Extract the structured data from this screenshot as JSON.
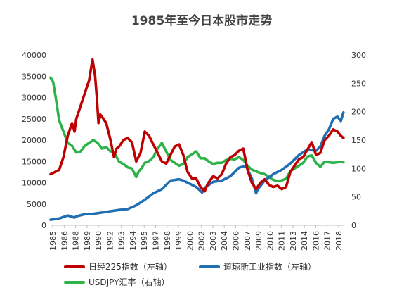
{
  "chart_data": {
    "type": "line",
    "title": "1985年至今日本股市走势",
    "xlabel": "",
    "ylabel": "",
    "x_tick_labels": [
      "1985",
      "1986",
      "1988",
      "1989",
      "1990",
      "1992",
      "1993",
      "1994",
      "1995",
      "1997",
      "1998",
      "1999",
      "2000",
      "2002",
      "2003",
      "2004",
      "2006",
      "2007",
      "2009",
      "2010",
      "2011",
      "2013",
      "2014",
      "2016",
      "2017",
      "2018"
    ],
    "x_range": [
      1985,
      2019.3
    ],
    "y_left_ticks": [
      "0",
      "5000",
      "10000",
      "15000",
      "20000",
      "25000",
      "30000",
      "35000",
      "40000"
    ],
    "y_left_range": [
      0,
      40000
    ],
    "y_right_ticks": [
      "0",
      "50",
      "100",
      "150",
      "200",
      "250",
      "300"
    ],
    "y_right_range": [
      0,
      300
    ],
    "legend_placement": "bottom",
    "grid": false,
    "series": [
      {
        "name": "日经225指数（左轴）",
        "axis": "left",
        "color": "#c00000",
        "x": [
          1985,
          1985.5,
          1986,
          1986.5,
          1987,
          1987.5,
          1987.8,
          1988,
          1988.5,
          1989,
          1989.5,
          1989.9,
          1990.2,
          1990.4,
          1990.6,
          1990.8,
          1991,
          1991.5,
          1992,
          1992.4,
          1992.7,
          1993,
          1993.5,
          1994,
          1994.5,
          1995,
          1995.5,
          1996,
          1996.5,
          1997,
          1997.5,
          1998,
          1998.5,
          1999,
          1999.5,
          2000,
          2000.5,
          2001,
          2001.5,
          2002,
          2002.5,
          2003,
          2003.3,
          2003.6,
          2004,
          2004.5,
          2005,
          2005.5,
          2006,
          2006.5,
          2007,
          2007.5,
          2008,
          2008.5,
          2009,
          2009.5,
          2010,
          2010.5,
          2011,
          2011.5,
          2012,
          2012.5,
          2013,
          2013.5,
          2014,
          2014.5,
          2015,
          2015.5,
          2016,
          2016.5,
          2017,
          2017.5,
          2018,
          2018.5,
          2018.9,
          2019.2
        ],
        "y": [
          12000,
          12500,
          13000,
          16000,
          21000,
          24000,
          22000,
          25000,
          28000,
          31000,
          34000,
          38900,
          35000,
          30000,
          24000,
          26000,
          25500,
          24000,
          20000,
          16000,
          18000,
          18500,
          20000,
          20500,
          19500,
          15000,
          17000,
          22000,
          21000,
          19000,
          17000,
          15000,
          14500,
          16500,
          18500,
          19000,
          16500,
          12500,
          11000,
          11000,
          9000,
          8000,
          9500,
          10500,
          11500,
          11000,
          12000,
          14500,
          16000,
          16500,
          17500,
          18000,
          13000,
          10000,
          8500,
          10000,
          10800,
          9500,
          9000,
          9300,
          8500,
          9000,
          12500,
          14000,
          15500,
          16000,
          17800,
          19500,
          16500,
          17000,
          20000,
          21000,
          22500,
          22000,
          21000,
          20500
        ]
      },
      {
        "name": "道琼斯工业指数（左轴）",
        "axis": "left",
        "color": "#1f6fb2",
        "x": [
          1985,
          1986,
          1987,
          1987.8,
          1988,
          1989,
          1990,
          1991,
          1992,
          1993,
          1994,
          1995,
          1996,
          1997,
          1998,
          1999,
          2000,
          2000.5,
          2001,
          2001.5,
          2002,
          2002.7,
          2003,
          2004,
          2005,
          2006,
          2007,
          2007.8,
          2008.5,
          2009,
          2009.2,
          2010,
          2011,
          2012,
          2013,
          2014,
          2015,
          2016,
          2016.5,
          2017,
          2017.5,
          2018,
          2018.5,
          2018.9,
          2019.2
        ],
        "y": [
          1300,
          1600,
          2300,
          1800,
          2100,
          2600,
          2700,
          3000,
          3300,
          3600,
          3800,
          4700,
          6000,
          7500,
          8500,
          10500,
          10800,
          10500,
          10000,
          9500,
          9000,
          7700,
          8800,
          10200,
          10500,
          11500,
          13500,
          14000,
          11000,
          7500,
          8500,
          10500,
          12000,
          13000,
          14500,
          16500,
          17800,
          17500,
          18500,
          21000,
          22500,
          25000,
          25500,
          24500,
          26500
        ]
      },
      {
        "name": "USDJPY汇率（右轴）",
        "axis": "right",
        "color": "#2db34a",
        "x": [
          1985,
          1985.3,
          1985.6,
          1986,
          1986.5,
          1987,
          1987.5,
          1988,
          1988.5,
          1989,
          1989.5,
          1990,
          1990.5,
          1991,
          1991.5,
          1992,
          1992.5,
          1993,
          1993.5,
          1994,
          1994.5,
          1995,
          1995.3,
          1995.6,
          1996,
          1996.5,
          1997,
          1997.5,
          1998,
          1998.5,
          1999,
          1999.5,
          2000,
          2000.5,
          2001,
          2001.5,
          2002,
          2002.5,
          2003,
          2003.5,
          2004,
          2004.5,
          2005,
          2005.5,
          2006,
          2006.5,
          2007,
          2007.5,
          2008,
          2008.5,
          2009,
          2009.5,
          2010,
          2010.5,
          2011,
          2011.5,
          2012,
          2012.5,
          2013,
          2013.5,
          2014,
          2014.5,
          2015,
          2015.5,
          2016,
          2016.5,
          2017,
          2017.5,
          2018,
          2018.5,
          2018.9,
          2019.2
        ],
        "y": [
          260,
          252,
          225,
          185,
          165,
          145,
          140,
          128,
          130,
          140,
          145,
          150,
          145,
          135,
          138,
          130,
          126,
          112,
          108,
          102,
          100,
          85,
          95,
          100,
          110,
          113,
          120,
          135,
          145,
          130,
          115,
          110,
          105,
          108,
          120,
          125,
          130,
          118,
          118,
          112,
          108,
          110,
          110,
          115,
          117,
          116,
          120,
          115,
          105,
          98,
          95,
          92,
          90,
          85,
          80,
          78,
          79,
          82,
          95,
          100,
          105,
          110,
          121,
          123,
          110,
          103,
          112,
          111,
          110,
          111,
          112,
          111
        ]
      }
    ]
  }
}
